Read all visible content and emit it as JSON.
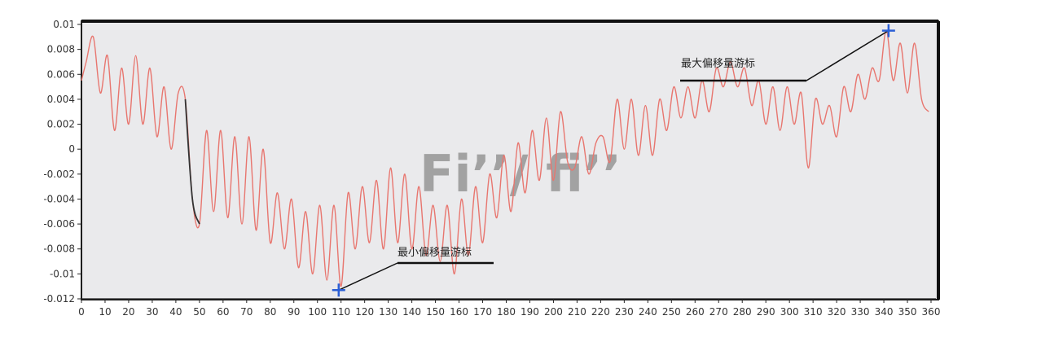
{
  "chart_data": {
    "type": "line",
    "title": "",
    "xlabel": "",
    "ylabel": "",
    "xlim": [
      0,
      360
    ],
    "ylim": [
      -0.012,
      0.01
    ],
    "x_ticks": [
      0,
      10,
      20,
      30,
      40,
      50,
      60,
      70,
      80,
      90,
      100,
      110,
      120,
      130,
      140,
      150,
      160,
      170,
      180,
      190,
      200,
      210,
      220,
      230,
      240,
      250,
      260,
      270,
      280,
      290,
      300,
      310,
      320,
      330,
      340,
      350,
      360
    ],
    "y_ticks": [
      0.01,
      0.008,
      0.006,
      0.004,
      0.002,
      0,
      -0.002,
      -0.004,
      -0.006,
      -0.008,
      -0.01,
      -0.012
    ],
    "y_tick_labels": [
      "0.01",
      "0.008",
      "0.006",
      "0.004",
      "0.002",
      "0",
      "-0.002",
      "-0.004",
      "-0.006",
      "-0.008",
      "-0.01",
      "-0.012"
    ],
    "grid": false,
    "line_color": "#e8766f",
    "highlight_color": "#333333",
    "marker_color": "#2b5fd6",
    "highlight_x_range": [
      44,
      50
    ],
    "series": [
      {
        "x": [
          0,
          2,
          5,
          8,
          11,
          14,
          17,
          20,
          23,
          26,
          29,
          32,
          35,
          38,
          41,
          44,
          47,
          50,
          53,
          56,
          59,
          62,
          65,
          68,
          71,
          74,
          77,
          80,
          83,
          86,
          89,
          92,
          95,
          98,
          101,
          104,
          107,
          110,
          113,
          116,
          119,
          122,
          125,
          128,
          131,
          134,
          137,
          140,
          143,
          146,
          149,
          152,
          155,
          158,
          161,
          164,
          167,
          170,
          173,
          176,
          179,
          182,
          185,
          188,
          191,
          194,
          197,
          200,
          203,
          206,
          209,
          212,
          215,
          218,
          221,
          224,
          227,
          230,
          233,
          236,
          239,
          242,
          245,
          248,
          251,
          254,
          257,
          260,
          263,
          266,
          269,
          272,
          275,
          278,
          281,
          284,
          287,
          290,
          293,
          296,
          299,
          302,
          305,
          308,
          311,
          314,
          317,
          320,
          323,
          326,
          329,
          332,
          335,
          338,
          341,
          344,
          347,
          350,
          353,
          356,
          359
        ],
        "y": [
          0.0055,
          0.007,
          0.009,
          0.0045,
          0.0075,
          0.0015,
          0.0065,
          0.002,
          0.0075,
          0.002,
          0.0065,
          0.001,
          0.005,
          0.0,
          0.0045,
          0.004,
          -0.004,
          -0.006,
          0.0015,
          -0.005,
          0.0015,
          -0.0055,
          0.001,
          -0.006,
          0.001,
          -0.0065,
          0.0,
          -0.0075,
          -0.0035,
          -0.008,
          -0.004,
          -0.0095,
          -0.005,
          -0.01,
          -0.0045,
          -0.0105,
          -0.0045,
          -0.011,
          -0.0035,
          -0.008,
          -0.003,
          -0.0075,
          -0.0025,
          -0.008,
          -0.0015,
          -0.0075,
          -0.002,
          -0.008,
          -0.003,
          -0.0085,
          -0.0045,
          -0.009,
          -0.0045,
          -0.01,
          -0.004,
          -0.0085,
          -0.003,
          -0.0075,
          -0.002,
          -0.0055,
          -0.0005,
          -0.005,
          0.0005,
          -0.0035,
          0.0015,
          -0.0025,
          0.0025,
          -0.0025,
          0.003,
          -0.001,
          -0.0015,
          0.001,
          -0.002,
          0.0005,
          0.001,
          -0.001,
          0.004,
          0.0,
          0.004,
          -0.0005,
          0.0035,
          -0.0005,
          0.004,
          0.0015,
          0.005,
          0.0025,
          0.005,
          0.0025,
          0.0055,
          0.003,
          0.0065,
          0.005,
          0.007,
          0.005,
          0.0065,
          0.0035,
          0.0055,
          0.002,
          0.005,
          0.0015,
          0.005,
          0.002,
          0.0045,
          -0.0015,
          0.004,
          0.002,
          0.0035,
          0.001,
          0.005,
          0.003,
          0.006,
          0.004,
          0.0065,
          0.0055,
          0.0095,
          0.0055,
          0.0085,
          0.0045,
          0.0085,
          0.004,
          0.003
        ]
      }
    ],
    "watermark": "Fi’’/ fi’’",
    "markers": [
      {
        "label": "最小偏移量游标",
        "x": 109,
        "y": -0.0113
      },
      {
        "label": "最大偏移量游标",
        "x": 342,
        "y": 0.0095
      }
    ]
  }
}
